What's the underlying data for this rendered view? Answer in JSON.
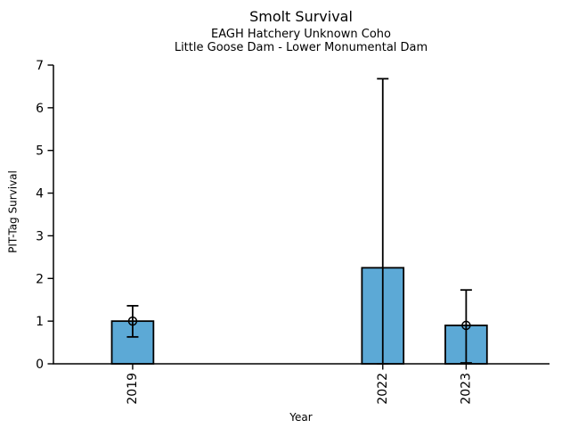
{
  "figure": {
    "title": "Smolt Survival",
    "subtitle_line1": "EAGH Hatchery Unknown Coho",
    "subtitle_line2": "Little Goose Dam - Lower Monumental Dam",
    "xlabel": "Year",
    "ylabel": "PIT-Tag Survival"
  },
  "chart_data": {
    "type": "bar",
    "title": "Smolt Survival",
    "subtitle": [
      "EAGH Hatchery Unknown Coho",
      "Little Goose Dam - Lower Monumental Dam"
    ],
    "xlabel": "Year",
    "ylabel": "PIT-Tag Survival",
    "categories": [
      "2019",
      "2022",
      "2023"
    ],
    "x": [
      2019,
      2022,
      2023
    ],
    "values": [
      1.0,
      2.25,
      0.9
    ],
    "error_low": [
      0.63,
      0.0,
      0.02
    ],
    "error_high": [
      1.36,
      6.68,
      1.73
    ],
    "point_markers": [
      1.0,
      null,
      0.9
    ],
    "ylim": [
      0,
      7
    ],
    "yticks": [
      0,
      1,
      2,
      3,
      4,
      5,
      6,
      7
    ],
    "xlim": [
      2018.05,
      2024.0
    ],
    "bar_width": 0.5,
    "grid": false,
    "legend": false,
    "colors": {
      "bar_fill": "#5CA9D6",
      "bar_edge": "#000000",
      "error_bar": "#000000",
      "text": "#000000",
      "background": "#FFFFFF"
    }
  }
}
